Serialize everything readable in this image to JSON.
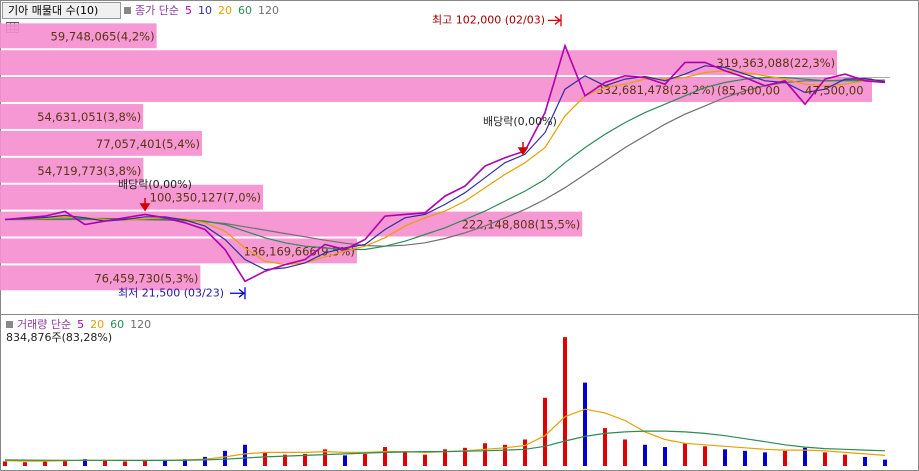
{
  "header": {
    "title": "기아 매물대 수(10)"
  },
  "chart_data": [
    {
      "type": "line",
      "legend_prefix": "종가 단순",
      "categories": [
        null,
        null,
        null,
        null,
        null,
        null,
        null,
        null,
        null,
        null,
        null,
        null,
        null,
        null,
        null,
        null,
        null,
        null,
        null,
        null,
        null,
        null,
        null,
        null,
        null,
        null,
        null,
        null,
        null,
        null,
        null,
        null,
        null,
        null,
        null,
        null,
        null,
        null,
        null,
        null,
        null,
        null,
        null,
        null,
        null
      ],
      "ylim": [
        15000,
        104500
      ],
      "series": [
        {
          "name": "5",
          "color": "#b000b0",
          "values": [
            43000,
            43500,
            44000,
            45400,
            41500,
            42500,
            43500,
            44500,
            43500,
            42000,
            40000,
            34000,
            24500,
            27500,
            29500,
            31000,
            35500,
            34000,
            37000,
            44000,
            44500,
            45000,
            50000,
            53000,
            59000,
            61500,
            63500,
            75000,
            95000,
            80000,
            84000,
            86000,
            85500,
            83500,
            90000,
            90000,
            87500,
            85500,
            83000,
            84500,
            77500,
            85000,
            86500,
            84500,
            84000
          ]
        },
        {
          "name": "10",
          "color": "#3030a0",
          "values": [
            43000,
            43200,
            43600,
            44200,
            43500,
            42500,
            43000,
            43800,
            43800,
            42800,
            41000,
            37000,
            31000,
            28000,
            28500,
            30000,
            33000,
            34500,
            35500,
            40000,
            43500,
            44500,
            47500,
            51000,
            55500,
            60000,
            62500,
            69000,
            82000,
            86000,
            83000,
            85000,
            85800,
            84500,
            86500,
            89000,
            88500,
            86500,
            84500,
            84000,
            81000,
            82000,
            85000,
            85200,
            84300
          ]
        },
        {
          "name": "20",
          "color": "#e8a000",
          "values": [
            43000,
            43100,
            43300,
            43700,
            43600,
            43000,
            42800,
            43200,
            43500,
            43200,
            42000,
            39500,
            34500,
            30500,
            29500,
            30000,
            31800,
            33500,
            35000,
            37500,
            41000,
            43500,
            45500,
            48500,
            52500,
            56500,
            60000,
            64500,
            74000,
            80000,
            82500,
            83500,
            85000,
            85000,
            85500,
            87000,
            87500,
            87000,
            86000,
            85000,
            83500,
            83000,
            83500,
            84500,
            84500
          ]
        },
        {
          "name": "60",
          "color": "#2e8b57",
          "values": [
            43000,
            43000,
            43100,
            43200,
            43300,
            43300,
            43200,
            43100,
            43100,
            43000,
            42500,
            41500,
            39500,
            37500,
            36000,
            35000,
            34500,
            34000,
            34000,
            35000,
            36500,
            38500,
            40500,
            43000,
            45500,
            48500,
            51500,
            55000,
            60000,
            64500,
            68500,
            72000,
            75000,
            77500,
            80000,
            82500,
            84000,
            85000,
            85500,
            85500,
            85000,
            84500,
            84500,
            84500,
            84500
          ]
        },
        {
          "name": "120",
          "color": "#707070",
          "values": [
            43000,
            43000,
            43000,
            43000,
            43000,
            43000,
            43000,
            42900,
            42800,
            42600,
            42300,
            41800,
            40800,
            39800,
            38800,
            37800,
            36800,
            35900,
            35200,
            35000,
            35300,
            36000,
            37300,
            39000,
            41000,
            43500,
            46000,
            49000,
            52500,
            56500,
            60500,
            64500,
            68000,
            71500,
            74500,
            77000,
            79500,
            81500,
            83000,
            84000,
            84500,
            84500,
            84700,
            84700,
            84700
          ]
        }
      ],
      "volume_profile": [
        {
          "value": 59748065,
          "label": "59,748,065(4,2%)"
        },
        {
          "value": 319363088,
          "label": "319,363,088(22,3%)"
        },
        {
          "value": 332681478,
          "label": "332,681,478(23,2%)"
        },
        {
          "value": 54631051,
          "label": "54,631,051(3,8%)"
        },
        {
          "value": 77057401,
          "label": "77,057,401(5,4%)"
        },
        {
          "value": 54719773,
          "label": "54,719,773(3,8%)"
        },
        {
          "value": 100350127,
          "label": "100,350,127(7,0%)"
        },
        {
          "value": 222148808,
          "label": "222,148,808(15,5%)"
        },
        {
          "value": 136169666,
          "label": "136,169,666(9,5%)"
        },
        {
          "value": 76459730,
          "label": "76,459,730(5,3%)"
        }
      ],
      "profile_color": "#f48fd0",
      "high": {
        "value": 102000,
        "label": "최고 102,000 (02/03)"
      },
      "low": {
        "value": 21500,
        "label": "최저 21,500 (03/23)"
      },
      "dividend_marks": [
        "배당락(0,00%)",
        "배당락(0,00%)"
      ],
      "overlay_texts": [
        "(85,500,00",
        "47,500,00"
      ]
    },
    {
      "type": "bar",
      "legend_prefix": "거래량 단순",
      "legend": [
        {
          "name": "5",
          "color": "#b000b0"
        },
        {
          "name": "20",
          "color": "#e8a000"
        },
        {
          "name": "60",
          "color": "#2e8b57"
        },
        {
          "name": "120",
          "color": "#707070"
        }
      ],
      "info": "834,876주(83,28%)",
      "categories": [
        null,
        null,
        null,
        null,
        null,
        null,
        null,
        null,
        null,
        null,
        null,
        null,
        null,
        null,
        null,
        null,
        null,
        null,
        null,
        null,
        null,
        null,
        null,
        null,
        null,
        null,
        null,
        null,
        null,
        null,
        null,
        null,
        null,
        null,
        null,
        null,
        null,
        null,
        null,
        null,
        null,
        null,
        null,
        null,
        null
      ],
      "ylim": [
        0,
        19000000
      ],
      "values": [
        600000,
        500000,
        700000,
        800000,
        900000,
        700000,
        600000,
        700000,
        800000,
        900000,
        1200000,
        2000000,
        2800000,
        1800000,
        1500000,
        1600000,
        2200000,
        1400000,
        1600000,
        2500000,
        1800000,
        1500000,
        2200000,
        2400000,
        3000000,
        2800000,
        3500000,
        9000000,
        17000000,
        11000000,
        5000000,
        3500000,
        2800000,
        2500000,
        3000000,
        2600000,
        2200000,
        2000000,
        1800000,
        2000000,
        2400000,
        1800000,
        1500000,
        1200000,
        834876
      ],
      "up_color": "#e00000",
      "down_color": "#0000d0",
      "lines": [
        {
          "color": "#e8a000",
          "values": [
            700000,
            650000,
            650000,
            700000,
            750000,
            750000,
            720000,
            720000,
            750000,
            800000,
            900000,
            1200000,
            1600000,
            1800000,
            1800000,
            1800000,
            1900000,
            1800000,
            1800000,
            1900000,
            1900000,
            1800000,
            1900000,
            2000000,
            2200000,
            2400000,
            2700000,
            4000000,
            6500000,
            7500000,
            7000000,
            6000000,
            4500000,
            3500000,
            3000000,
            2800000,
            2600000,
            2400000,
            2200000,
            2100000,
            2100000,
            2000000,
            1800000,
            1600000,
            1400000
          ]
        },
        {
          "color": "#2e8b57",
          "values": [
            800000,
            780000,
            760000,
            750000,
            750000,
            750000,
            740000,
            740000,
            740000,
            750000,
            800000,
            900000,
            1050000,
            1200000,
            1300000,
            1400000,
            1500000,
            1600000,
            1700000,
            1800000,
            1850000,
            1900000,
            1900000,
            1950000,
            2000000,
            2100000,
            2200000,
            2600000,
            3300000,
            3900000,
            4300000,
            4500000,
            4600000,
            4600000,
            4500000,
            4300000,
            4000000,
            3600000,
            3200000,
            2800000,
            2500000,
            2300000,
            2200000,
            2100000,
            2000000
          ]
        }
      ]
    }
  ]
}
